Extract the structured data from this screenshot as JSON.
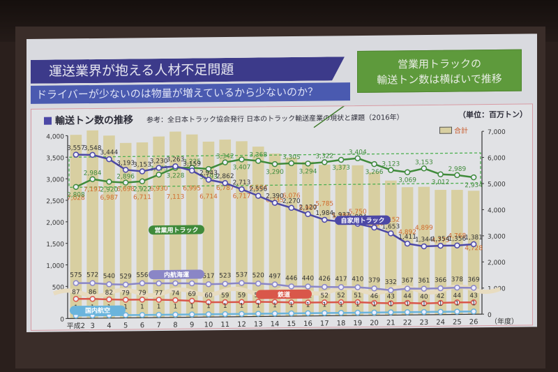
{
  "slide": {
    "title": "運送業界が抱える人材不足問題",
    "subtitle": "ドライバーが少ないのは物量が増えているから少ないのか？",
    "callout_line1": "営業用トラックの",
    "callout_line2": "輸送トン数は横ばいで推移",
    "chart_title": "輸送トン数の推移",
    "source": "参考：全日本トラック協会発行 日本のトラック輸送産業の現状と課題（2016年）",
    "unit": "（単位：百万トン）",
    "legend_total": "合計"
  },
  "colors": {
    "title_bar": "#3c3a8a",
    "subtitle_bar": "#4a5ab0",
    "callout": "#5e9a3c",
    "bars_total": "#d8cfa1",
    "commercial_truck": "#3f8a3a",
    "private_truck": "#4c48a6",
    "coastal_shipping": "#8a86c6",
    "rail": "#d9574a",
    "domestic_air": "#6ab4dc",
    "total_labels": "#d06a2a"
  },
  "chart_data": {
    "type": "bar+line",
    "title": "輸送トン数の推移",
    "xlabel": "（年度）",
    "ylabel_left": "百万トン",
    "ylabel_right": "百万トン",
    "categories": [
      "平成2",
      "3",
      "4",
      "5",
      "6",
      "7",
      "8",
      "9",
      "10",
      "11",
      "12",
      "13",
      "14",
      "15",
      "16",
      "17",
      "18",
      "19",
      "20",
      "21",
      "22",
      "23",
      "24",
      "25",
      "26"
    ],
    "left_axis_ticks": [
      "4,000",
      "3,500",
      "3,000",
      "2,500",
      "2,000",
      "1,500",
      "1,000",
      "500",
      "0"
    ],
    "right_axis_ticks": [
      "7,000",
      "6,000",
      "5,000",
      "4,000",
      "3,000",
      "2,000",
      "1,000",
      "0"
    ],
    "left_ylim": [
      0,
      4000
    ],
    "right_ylim": [
      0,
      7000
    ],
    "axis_break": true,
    "series": [
      {
        "name": "合計",
        "type": "bar",
        "axis": "right",
        "label_color": "#d06a2a",
        "values": [
          7028,
          7191,
          6987,
          6698,
          6711,
          6930,
          7113,
          6995,
          6714,
          6787,
          6717,
          6504,
          6235,
          6076,
          5907,
          5785,
          5780,
          5750,
          5484,
          5152,
          4892,
          4899,
          4775,
          4768,
          4728
        ]
      },
      {
        "name": "営業用トラック",
        "type": "line",
        "axis": "left",
        "values": [
          2808,
          2984,
          2920,
          2896,
          2922,
          3073,
          3228,
          3225,
          3193,
          3342,
          3407,
          3368,
          3290,
          3305,
          3294,
          3322,
          3373,
          3404,
          3266,
          3123,
          3069,
          3153,
          3012,
          2989,
          2934
        ]
      },
      {
        "name": "自家用トラック",
        "type": "line",
        "axis": "left",
        "values": [
          3557,
          3548,
          3444,
          3193,
          3153,
          3230,
          3263,
          3159,
          2943,
          2862,
          2713,
          2556,
          2390,
          2270,
          2120,
          1984,
          1937,
          1884,
          1792,
          1653,
          1411,
          1344,
          1354,
          1356,
          1381
        ]
      },
      {
        "name": "内航海運",
        "type": "line",
        "axis": "left",
        "values": [
          575,
          572,
          540,
          529,
          556,
          549,
          547,
          541,
          517,
          523,
          537,
          520,
          497,
          446,
          440,
          426,
          417,
          410,
          379,
          332,
          367,
          361,
          366,
          378,
          369
        ]
      },
      {
        "name": "鉄道",
        "type": "line",
        "axis": "left",
        "values": [
          87,
          86,
          82,
          79,
          79,
          77,
          74,
          69,
          60,
          59,
          59,
          59,
          57,
          54,
          52,
          52,
          52,
          51,
          46,
          43,
          44,
          40,
          42,
          44,
          43
        ]
      },
      {
        "name": "国内航空",
        "type": "line",
        "axis": "left",
        "values": [
          1,
          1,
          1,
          1,
          1,
          1,
          1,
          1,
          1,
          1,
          1,
          1,
          1,
          1,
          1,
          1,
          1,
          1,
          1,
          1,
          1,
          1,
          1,
          1,
          1
        ]
      }
    ],
    "annotations": [
      "営業用トラック",
      "自家用トラック",
      "内航海運",
      "鉄道",
      "国内航空"
    ],
    "legend_position": "top-right",
    "grid": false
  }
}
